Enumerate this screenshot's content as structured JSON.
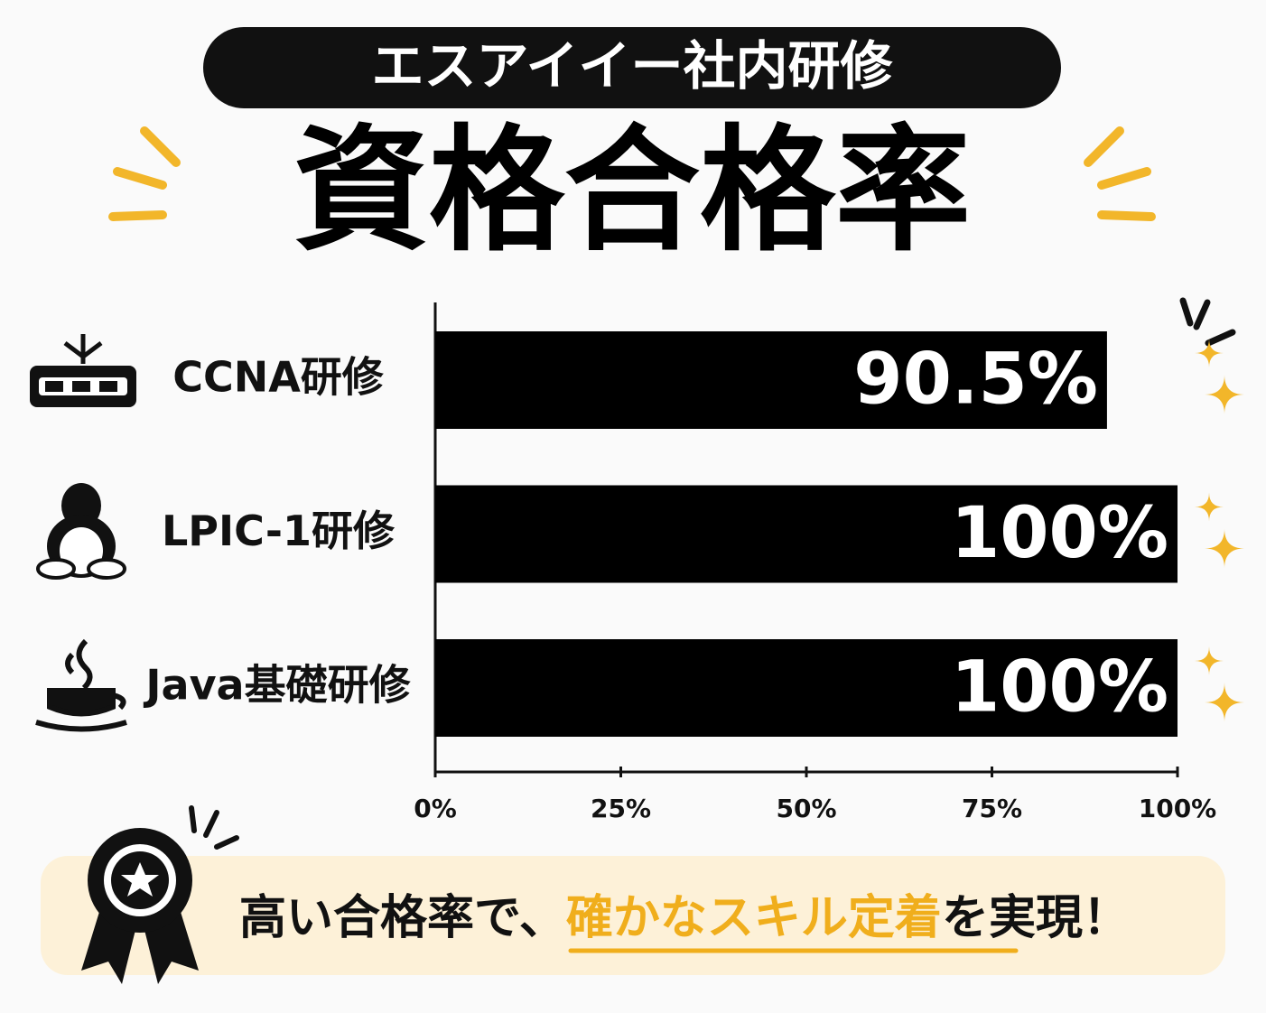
{
  "chart_data": {
    "type": "hbar",
    "subtitle": "エスアイイー社内研修",
    "title": "資格合格率",
    "categories": [
      "CCNA研修",
      "LPIC-1研修",
      "Java基礎研修"
    ],
    "values": [
      90.5,
      100,
      100
    ],
    "value_labels": [
      "90.5%",
      "100%",
      "100%"
    ],
    "color": "#000000",
    "xlim": [
      0,
      100
    ],
    "xticks": [
      {
        "value": 0,
        "label": "0%"
      },
      {
        "value": 25,
        "label": "25%"
      },
      {
        "value": 50,
        "label": "50%"
      },
      {
        "value": 75,
        "label": "75%"
      },
      {
        "value": 100,
        "label": "100%"
      }
    ],
    "annotation": [
      "高い合格率で、",
      "確かなスキル定着",
      "を実現！"
    ]
  }
}
